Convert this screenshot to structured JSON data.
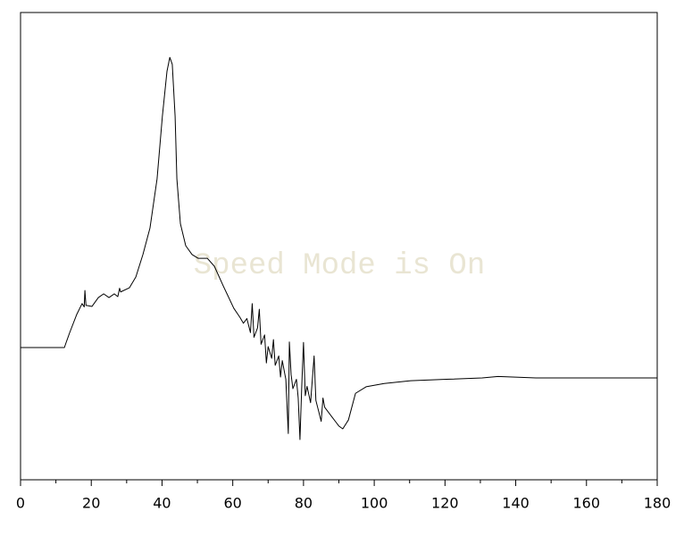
{
  "chart_data": {
    "type": "line",
    "watermark": "Speed Mode is On",
    "xlim": [
      0,
      180
    ],
    "ylim": [
      0,
      100
    ],
    "xticks": [
      0,
      20,
      40,
      60,
      80,
      100,
      120,
      140,
      160,
      180
    ],
    "xminor_ticks": [
      10,
      30,
      50,
      70,
      90,
      110,
      130,
      150,
      170
    ],
    "series": [
      {
        "color": "#000000",
        "x": [
          0,
          12.4,
          12.9,
          13.9,
          15.9,
          17.4,
          18.0,
          18.2,
          18.5,
          18.7,
          20.2,
          22.0,
          23.5,
          25.0,
          26.5,
          27.5,
          28.0,
          28.3,
          30.8,
          32.6,
          34.6,
          36.6,
          38.6,
          40.1,
          41.4,
          42.2,
          42.9,
          43.7,
          44.2,
          45.2,
          46.7,
          48.5,
          50.2,
          52.8,
          54.8,
          57.3,
          60.3,
          62,
          63,
          64,
          65,
          65.5,
          66,
          67,
          67.5,
          68,
          69,
          69.5,
          70,
          71,
          71.5,
          72,
          73,
          73.5,
          74,
          75,
          75.7,
          76,
          76.5,
          77,
          78,
          78.5,
          79,
          79.5,
          80,
          80.5,
          81,
          82,
          83,
          83.5,
          84,
          85,
          85.5,
          86,
          87,
          88,
          89,
          90,
          91.1,
          92.7,
          94.7,
          97.7,
          102.8,
          110.3,
          120.4,
          130.5,
          135,
          145.7,
          180
        ],
        "values": [
          28.3,
          28.3,
          29.4,
          31.5,
          35.4,
          37.7,
          37.0,
          40.5,
          37.3,
          37.3,
          37.1,
          39.0,
          39.8,
          39.0,
          39.8,
          39.2,
          41.0,
          40.2,
          41.1,
          43.4,
          48.2,
          53.9,
          64.4,
          77.8,
          87.4,
          90.4,
          88.9,
          77.8,
          64.4,
          54.8,
          50.1,
          48.2,
          47.4,
          47.4,
          45.7,
          41.5,
          36.7,
          34.8,
          33.5,
          34.5,
          31.5,
          37.7,
          30.5,
          32.5,
          36.5,
          29.0,
          31.0,
          25.0,
          28.5,
          26.0,
          30.0,
          24.5,
          26.5,
          22.0,
          25.5,
          21.5,
          9.9,
          29.5,
          22.5,
          19.5,
          21.5,
          17.5,
          8.6,
          20.0,
          29.4,
          18.0,
          20.0,
          16.5,
          26.5,
          17.0,
          15.5,
          12.5,
          17.5,
          15.5,
          14.5,
          13.5,
          12.5,
          11.5,
          10.9,
          12.8,
          18.5,
          19.9,
          20.6,
          21.2,
          21.5,
          21.8,
          22.1,
          21.8,
          21.8
        ]
      }
    ]
  }
}
